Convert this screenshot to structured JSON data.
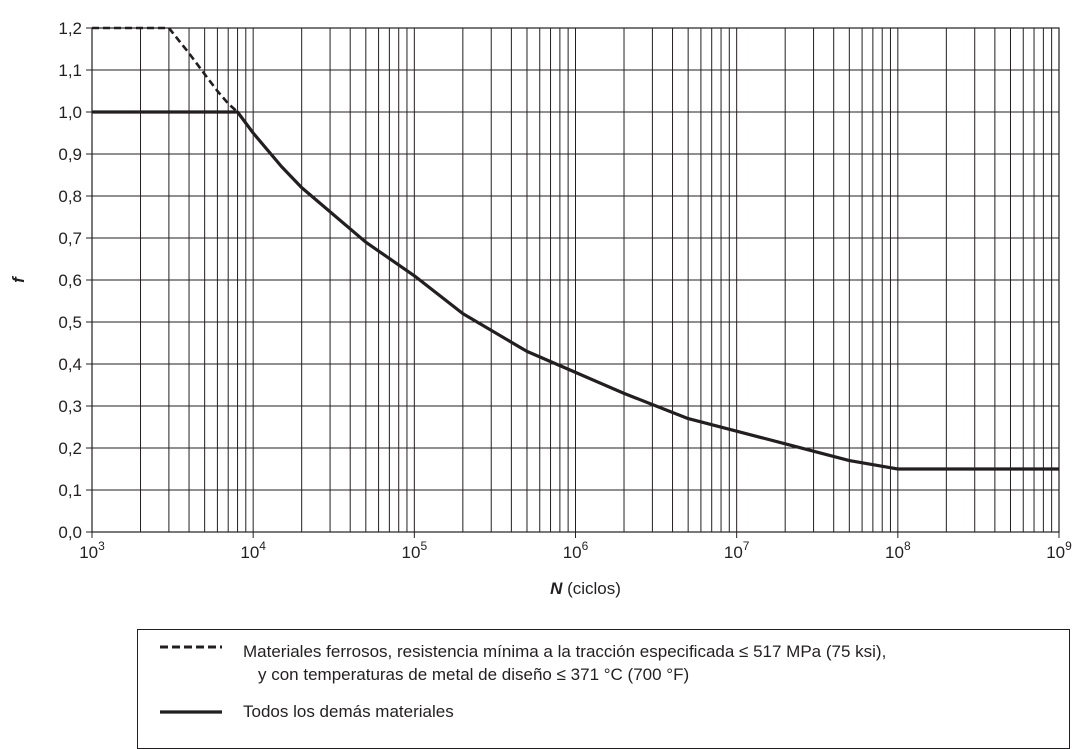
{
  "chart_data": {
    "type": "line",
    "title": "",
    "xlabel": "N",
    "xlabel_suffix": "(ciclos)",
    "ylabel": "f",
    "x_scale": "log",
    "xlim": [
      1000,
      1000000000
    ],
    "ylim": [
      0.0,
      1.2
    ],
    "grid": true,
    "y_ticks": [
      "0,0",
      "0,1",
      "0,2",
      "0,3",
      "0,4",
      "0,5",
      "0,6",
      "0,7",
      "0,8",
      "0,9",
      "1,0",
      "1,1",
      "1,2"
    ],
    "x_ticks": [
      {
        "base": "10",
        "exp": "3"
      },
      {
        "base": "10",
        "exp": "4"
      },
      {
        "base": "10",
        "exp": "5"
      },
      {
        "base": "10",
        "exp": "6"
      },
      {
        "base": "10",
        "exp": "7"
      },
      {
        "base": "10",
        "exp": "8"
      },
      {
        "base": "10",
        "exp": "9"
      }
    ],
    "series": [
      {
        "name": "Materiales ferrosos, resistencia mínima a la tracción especificada ≤ 517 MPa (75 ksi), y con temperaturas de metal de diseño ≤ 371 °C (700 °F)",
        "style": "dashed",
        "color": "#231f20",
        "x": [
          1000,
          3000,
          4000,
          5000,
          6000,
          7000,
          8000
        ],
        "y": [
          1.2,
          1.2,
          1.14,
          1.09,
          1.05,
          1.02,
          1.0
        ]
      },
      {
        "name": "Todos los demás materiales",
        "style": "solid",
        "color": "#231f20",
        "x": [
          1000,
          8000,
          10000,
          15000,
          20000,
          50000,
          100000,
          200000,
          500000,
          1000000,
          2000000,
          5000000,
          10000000,
          20000000,
          50000000,
          100000000,
          1000000000
        ],
        "y": [
          1.0,
          1.0,
          0.95,
          0.87,
          0.82,
          0.69,
          0.61,
          0.52,
          0.43,
          0.38,
          0.33,
          0.27,
          0.24,
          0.21,
          0.17,
          0.15,
          0.15
        ]
      }
    ]
  },
  "legend": {
    "items": [
      {
        "line1": "Materiales ferrosos, resistencia mínima a la tracción especificada ≤ 517 MPa (75 ksi),",
        "line2": "y con temperaturas de metal de diseño ≤ 371 °C (700 °F)"
      },
      {
        "line1": "Todos los demás materiales"
      }
    ]
  }
}
